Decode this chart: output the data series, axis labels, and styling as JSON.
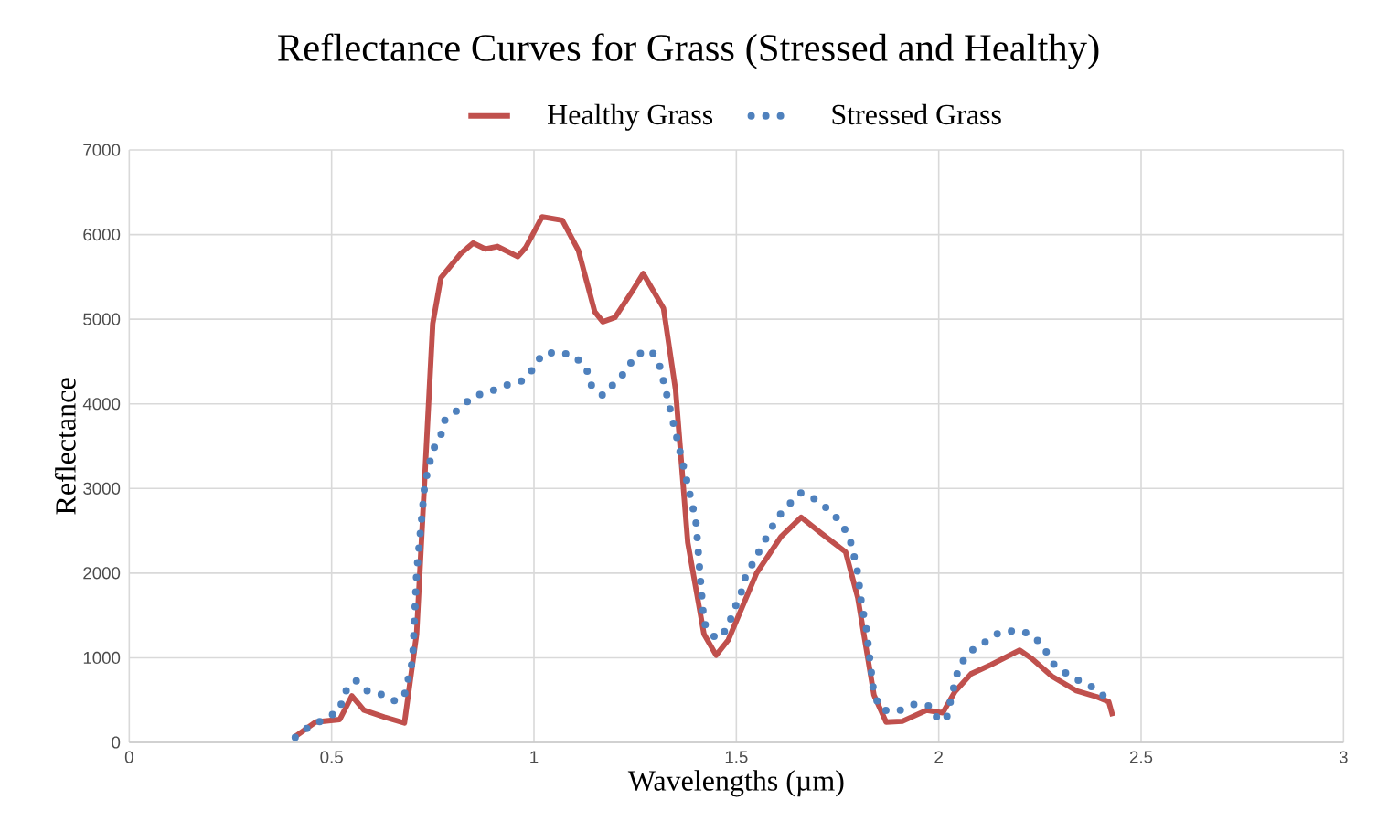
{
  "chart_data": {
    "type": "line",
    "title": "Reflectance Curves for Grass (Stressed and Healthy)",
    "xlabel": "Wavelengths  (µm)",
    "ylabel": "Reflectance",
    "xlim": [
      0,
      3
    ],
    "xticks": [
      0,
      0.5,
      1,
      1.5,
      2,
      2.5,
      3
    ],
    "ylim": [
      0,
      7000
    ],
    "yticks": [
      0,
      1000,
      2000,
      3000,
      4000,
      5000,
      6000,
      7000
    ],
    "grid": true,
    "legend": "top",
    "series": [
      {
        "name": "Healthy Grass",
        "color": "#c0504d",
        "line_style": "solid",
        "x": [
          0.41,
          0.46,
          0.52,
          0.55,
          0.58,
          0.63,
          0.68,
          0.71,
          0.75,
          0.77,
          0.82,
          0.85,
          0.88,
          0.91,
          0.96,
          0.98,
          1.02,
          1.07,
          1.11,
          1.15,
          1.17,
          1.2,
          1.24,
          1.27,
          1.32,
          1.35,
          1.38,
          1.42,
          1.45,
          1.48,
          1.55,
          1.61,
          1.66,
          1.71,
          1.77,
          1.8,
          1.84,
          1.87,
          1.91,
          1.97,
          2.01,
          2.04,
          2.08,
          2.13,
          2.2,
          2.23,
          2.28,
          2.34,
          2.39,
          2.42,
          2.43
        ],
        "values": [
          70,
          240,
          270,
          550,
          380,
          300,
          230,
          1280,
          4950,
          5490,
          5780,
          5900,
          5830,
          5860,
          5740,
          5850,
          6210,
          6170,
          5810,
          5090,
          4970,
          5020,
          5310,
          5540,
          5130,
          4160,
          2360,
          1280,
          1030,
          1210,
          2000,
          2430,
          2660,
          2470,
          2250,
          1710,
          560,
          240,
          250,
          380,
          350,
          600,
          810,
          920,
          1090,
          990,
          780,
          610,
          540,
          480,
          310
        ]
      },
      {
        "name": "Stressed Grass",
        "color": "#4f81bd",
        "line_style": "dotted",
        "x": [
          0.41,
          0.44,
          0.48,
          0.52,
          0.53,
          0.56,
          0.59,
          0.63,
          0.66,
          0.68,
          0.7,
          0.71,
          0.73,
          0.74,
          0.75,
          0.77,
          0.78,
          0.82,
          0.85,
          0.89,
          0.93,
          0.97,
          1.0,
          1.02,
          1.06,
          1.1,
          1.13,
          1.14,
          1.17,
          1.2,
          1.23,
          1.25,
          1.29,
          1.31,
          1.32,
          1.33,
          1.34,
          1.35,
          1.36,
          1.37,
          1.38,
          1.39,
          1.4,
          1.41,
          1.42,
          1.45,
          1.48,
          1.49,
          1.51,
          1.52,
          1.54,
          1.56,
          1.58,
          1.6,
          1.63,
          1.66,
          1.7,
          1.73,
          1.76,
          1.78,
          1.79,
          1.8,
          1.81,
          1.82,
          1.83,
          1.84,
          1.86,
          1.9,
          1.94,
          1.98,
          2.0,
          2.02,
          2.04,
          2.05,
          2.08,
          2.11,
          2.15,
          2.19,
          2.23,
          2.26,
          2.28,
          2.31,
          2.35,
          2.39,
          2.42
        ],
        "values": [
          60,
          170,
          270,
          380,
          580,
          730,
          600,
          560,
          480,
          560,
          970,
          2000,
          3040,
          3260,
          3450,
          3630,
          3810,
          3960,
          4090,
          4140,
          4220,
          4270,
          4420,
          4590,
          4610,
          4570,
          4410,
          4230,
          4100,
          4250,
          4400,
          4580,
          4630,
          4460,
          4270,
          4070,
          3860,
          3660,
          3450,
          3250,
          3040,
          2830,
          2620,
          2000,
          1410,
          1220,
          1350,
          1530,
          1730,
          1930,
          2110,
          2290,
          2470,
          2650,
          2810,
          2950,
          2860,
          2740,
          2590,
          2410,
          2220,
          2000,
          1600,
          1390,
          970,
          560,
          380,
          370,
          450,
          430,
          250,
          300,
          710,
          900,
          1080,
          1170,
          1300,
          1320,
          1280,
          1120,
          940,
          830,
          720,
          630,
          490
        ]
      }
    ]
  }
}
